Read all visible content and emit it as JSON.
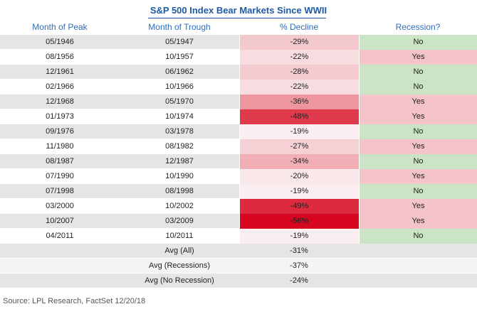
{
  "title": "S&P 500 Index Bear Markets Since WWII",
  "headers": {
    "peak": "Month of Peak",
    "trough": "Month of Trough",
    "decline": "% Decline",
    "recession": "Recession?"
  },
  "rows": [
    {
      "peak": "05/1946",
      "trough": "05/1947",
      "decline": "-29%",
      "recession": "No",
      "decline_color": "#f3c9cd",
      "recession_color": "#cce4c6"
    },
    {
      "peak": "08/1956",
      "trough": "10/1957",
      "decline": "-22%",
      "recession": "Yes",
      "decline_color": "#f7dde0",
      "recession_color": "#f4c4c9"
    },
    {
      "peak": "12/1961",
      "trough": "06/1962",
      "decline": "-28%",
      "recession": "No",
      "decline_color": "#f4cbcf",
      "recession_color": "#cce4c6"
    },
    {
      "peak": "02/1966",
      "trough": "10/1966",
      "decline": "-22%",
      "recession": "No",
      "decline_color": "#f7dde0",
      "recession_color": "#cce4c6"
    },
    {
      "peak": "12/1968",
      "trough": "05/1970",
      "decline": "-36%",
      "recession": "Yes",
      "decline_color": "#ee969f",
      "recession_color": "#f4c4c9"
    },
    {
      "peak": "01/1973",
      "trough": "10/1974",
      "decline": "-48%",
      "recession": "Yes",
      "decline_color": "#e03a4d",
      "recession_color": "#f4c4c9"
    },
    {
      "peak": "09/1976",
      "trough": "03/1978",
      "decline": "-19%",
      "recession": "No",
      "decline_color": "#fbeef0",
      "recession_color": "#cce4c6"
    },
    {
      "peak": "11/1980",
      "trough": "08/1982",
      "decline": "-27%",
      "recession": "Yes",
      "decline_color": "#f5d1d5",
      "recession_color": "#f4c4c9"
    },
    {
      "peak": "08/1987",
      "trough": "12/1987",
      "decline": "-34%",
      "recession": "No",
      "decline_color": "#f1aeb5",
      "recession_color": "#cce4c6"
    },
    {
      "peak": "07/1990",
      "trough": "10/1990",
      "decline": "-20%",
      "recession": "Yes",
      "decline_color": "#fae7e9",
      "recession_color": "#f4c4c9"
    },
    {
      "peak": "07/1998",
      "trough": "08/1998",
      "decline": "-19%",
      "recession": "No",
      "decline_color": "#fbeef0",
      "recession_color": "#cce4c6"
    },
    {
      "peak": "03/2000",
      "trough": "10/2002",
      "decline": "-49%",
      "recession": "Yes",
      "decline_color": "#dd2a3e",
      "recession_color": "#f4c4c9"
    },
    {
      "peak": "10/2007",
      "trough": "03/2009",
      "decline": "-56%",
      "recession": "Yes",
      "decline_color": "#d7061f",
      "recession_color": "#f4c4c9"
    },
    {
      "peak": "04/2011",
      "trough": "10/2011",
      "decline": "-19%",
      "recession": "No",
      "decline_color": "#fbeef0",
      "recession_color": "#cce4c6"
    }
  ],
  "averages": [
    {
      "label": "Avg (All)",
      "value": "-31%"
    },
    {
      "label": "Avg (Recessions)",
      "value": "-37%"
    },
    {
      "label": "Avg (No Recession)",
      "value": "-24%"
    }
  ],
  "source": "Source: LPL Research, FactSet   12/20/18"
}
